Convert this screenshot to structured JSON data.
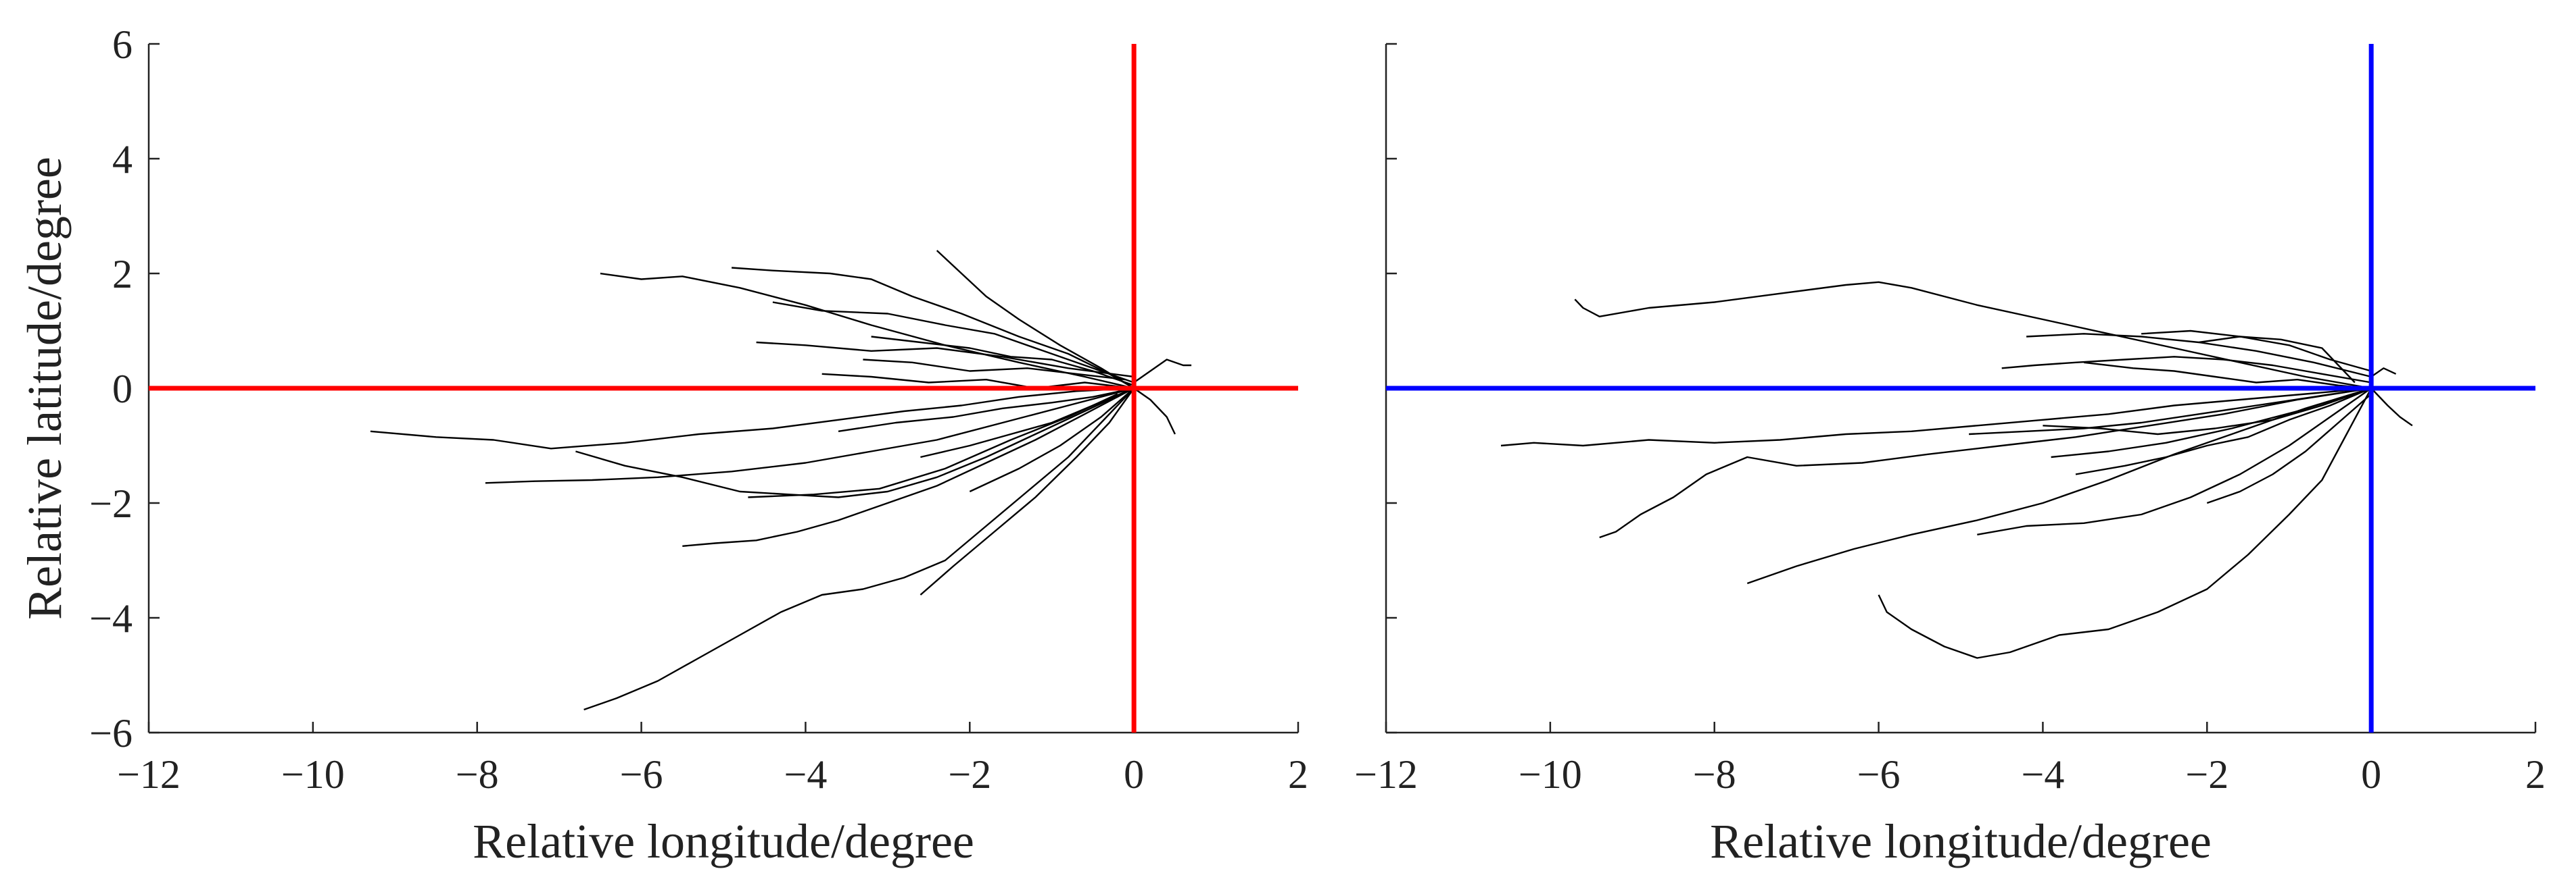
{
  "chart_data": [
    {
      "type": "line",
      "xlabel": "Relative longitude/degree",
      "ylabel": "Relative latitude/degree",
      "xlim": [
        -12,
        2
      ],
      "ylim": [
        -6,
        6
      ],
      "xticks": [
        -12,
        -10,
        -8,
        -6,
        -4,
        -2,
        0,
        2
      ],
      "yticks": [
        -6,
        -4,
        -2,
        0,
        2,
        4,
        6
      ],
      "xtick_labels": [
        "−12",
        "−10",
        "−8",
        "−6",
        "−4",
        "−2",
        "0",
        "2"
      ],
      "ytick_labels": [
        "−6",
        "−4",
        "−2",
        "0",
        "2",
        "4",
        "6"
      ],
      "grid": false,
      "reference_lines": {
        "color": "#ff0000",
        "x": 0,
        "y": 0
      },
      "track_color": "#000000",
      "series": [
        {
          "x": [
            0,
            -0.3,
            -0.8,
            -1.4,
            -2.1,
            -2.7,
            -3.2,
            -3.7,
            -4.4,
            -4.9
          ],
          "y": [
            0,
            0.25,
            0.6,
            0.9,
            1.3,
            1.6,
            1.9,
            2.0,
            2.05,
            2.1
          ]
        },
        {
          "x": [
            0,
            -0.6,
            -1.4,
            -2.3,
            -3.2,
            -4.0,
            -4.8,
            -5.5,
            -6.0,
            -6.5
          ],
          "y": [
            0,
            0.2,
            0.45,
            0.75,
            1.1,
            1.45,
            1.75,
            1.95,
            1.9,
            2.0
          ]
        },
        {
          "x": [
            0,
            -0.4,
            -0.9,
            -1.4,
            -1.8,
            -2.1,
            -2.4
          ],
          "y": [
            0,
            0.35,
            0.75,
            1.2,
            1.6,
            2.0,
            2.4
          ]
        },
        {
          "x": [
            0,
            -0.5,
            -1.1,
            -1.7,
            -2.3,
            -3.0,
            -3.8,
            -4.4
          ],
          "y": [
            0.1,
            0.35,
            0.65,
            0.95,
            1.1,
            1.3,
            1.35,
            1.5
          ]
        },
        {
          "x": [
            0,
            -0.8,
            -1.6,
            -2.4,
            -3.2,
            -4.0,
            -4.6
          ],
          "y": [
            0.2,
            0.35,
            0.55,
            0.7,
            0.65,
            0.75,
            0.8
          ]
        },
        {
          "x": [
            0,
            -0.7,
            -1.4,
            -2.1,
            -2.8,
            -3.6,
            -4.4,
            -5.3,
            -6.2,
            -7.1,
            -7.8,
            -8.5,
            -9.3
          ],
          "y": [
            0,
            -0.05,
            -0.15,
            -0.3,
            -0.4,
            -0.55,
            -0.7,
            -0.8,
            -0.95,
            -1.05,
            -0.9,
            -0.85,
            -0.75
          ]
        },
        {
          "x": [
            0,
            -0.8,
            -1.6,
            -2.4,
            -3.2,
            -4.0,
            -4.9,
            -5.8,
            -6.6,
            -7.3,
            -7.9
          ],
          "y": [
            0,
            -0.3,
            -0.6,
            -0.9,
            -1.1,
            -1.3,
            -1.45,
            -1.55,
            -1.6,
            -1.62,
            -1.65
          ]
        },
        {
          "x": [
            0,
            -0.6,
            -1.2,
            -1.8,
            -2.4,
            -3.0,
            -3.6,
            -4.2,
            -4.8,
            -5.5,
            -6.2,
            -6.8
          ],
          "y": [
            0,
            -0.4,
            -0.8,
            -1.2,
            -1.55,
            -1.8,
            -1.9,
            -1.85,
            -1.8,
            -1.55,
            -1.35,
            -1.1
          ]
        },
        {
          "x": [
            0,
            -0.4,
            -0.8,
            -1.3,
            -1.8,
            -2.3,
            -2.8,
            -3.3,
            -3.8,
            -4.3,
            -4.8,
            -5.3,
            -5.8,
            -6.3,
            -6.7
          ],
          "y": [
            0,
            -0.6,
            -1.2,
            -1.8,
            -2.4,
            -3.0,
            -3.3,
            -3.5,
            -3.6,
            -3.9,
            -4.3,
            -4.7,
            -5.1,
            -5.4,
            -5.6
          ]
        },
        {
          "x": [
            0,
            -0.3,
            -0.7,
            -1.2,
            -1.7,
            -2.2,
            -2.6
          ],
          "y": [
            0,
            -0.6,
            -1.2,
            -1.9,
            -2.5,
            -3.1,
            -3.6
          ]
        },
        {
          "x": [
            0,
            -0.6,
            -1.2,
            -1.8,
            -2.4,
            -3.0,
            -3.6,
            -4.1,
            -4.6,
            -5.1,
            -5.5
          ],
          "y": [
            0,
            -0.45,
            -0.9,
            -1.3,
            -1.7,
            -2.0,
            -2.3,
            -2.5,
            -2.65,
            -2.7,
            -2.75
          ]
        },
        {
          "x": [
            0,
            -0.5,
            -1.0,
            -1.5,
            -2.0,
            -2.6,
            -3.2
          ],
          "y": [
            0.05,
            0.3,
            0.5,
            0.55,
            0.7,
            0.8,
            0.9
          ]
        },
        {
          "x": [
            0,
            -0.5,
            -1.0,
            -1.6,
            -2.2,
            -2.9,
            -3.6
          ],
          "y": [
            0,
            -0.15,
            -0.25,
            -0.35,
            -0.5,
            -0.6,
            -0.75
          ]
        },
        {
          "x": [
            0,
            -0.4,
            -0.9,
            -1.4,
            -2.0
          ],
          "y": [
            0,
            -0.5,
            -1.0,
            -1.4,
            -1.8
          ]
        },
        {
          "x": [
            0,
            -0.6,
            -1.2,
            -1.8,
            -2.5,
            -3.2,
            -3.8
          ],
          "y": [
            0,
            0.1,
            0.0,
            0.15,
            0.1,
            0.2,
            0.25
          ]
        },
        {
          "x": [
            0,
            -0.5,
            -1.0,
            -1.5,
            -2.0,
            -2.6
          ],
          "y": [
            0,
            -0.3,
            -0.6,
            -0.8,
            -1.0,
            -1.2
          ]
        },
        {
          "x": [
            0,
            0.2,
            0.4,
            0.6,
            0.7
          ],
          "y": [
            0.1,
            0.3,
            0.5,
            0.4,
            0.4
          ]
        },
        {
          "x": [
            0,
            0.2,
            0.4,
            0.5
          ],
          "y": [
            0,
            -0.2,
            -0.5,
            -0.8
          ]
        },
        {
          "x": [
            -0.2,
            -0.8,
            -1.5,
            -2.3,
            -3.1,
            -3.9,
            -4.7
          ],
          "y": [
            -0.1,
            -0.5,
            -0.9,
            -1.4,
            -1.75,
            -1.85,
            -1.9
          ]
        },
        {
          "x": [
            -0.1,
            -0.7,
            -1.3,
            -2.0,
            -2.7,
            -3.3
          ],
          "y": [
            0.15,
            0.25,
            0.35,
            0.3,
            0.45,
            0.5
          ]
        }
      ]
    },
    {
      "type": "line",
      "xlabel": "Relative longitude/degree",
      "ylabel": "",
      "xlim": [
        -12,
        2
      ],
      "ylim": [
        -6,
        6
      ],
      "xticks": [
        -12,
        -10,
        -8,
        -6,
        -4,
        -2,
        0,
        2
      ],
      "yticks": [
        -6,
        -4,
        -2,
        0,
        2,
        4,
        6
      ],
      "xtick_labels": [
        "−12",
        "−10",
        "−8",
        "−6",
        "−4",
        "−2",
        "0",
        "2"
      ],
      "ytick_labels": [],
      "grid": false,
      "reference_lines": {
        "color": "#0000ff",
        "x": 0,
        "y": 0
      },
      "track_color": "#000000",
      "series": [
        {
          "x": [
            0,
            -0.8,
            -1.6,
            -2.4,
            -3.2,
            -4.0,
            -4.8,
            -5.6,
            -6.0,
            -6.4,
            -7.2,
            -8.0,
            -8.8,
            -9.4,
            -9.6,
            -9.7
          ],
          "y": [
            0,
            0.2,
            0.45,
            0.7,
            0.95,
            1.2,
            1.45,
            1.75,
            1.85,
            1.8,
            1.65,
            1.5,
            1.4,
            1.25,
            1.4,
            1.55
          ]
        },
        {
          "x": [
            0,
            -0.8,
            -1.6,
            -2.4,
            -3.2,
            -4.0,
            -4.8,
            -5.6,
            -6.4,
            -7.2,
            -8.0,
            -8.8,
            -9.6,
            -10.2,
            -10.6
          ],
          "y": [
            0,
            -0.1,
            -0.2,
            -0.3,
            -0.45,
            -0.55,
            -0.65,
            -0.75,
            -0.8,
            -0.9,
            -0.95,
            -0.9,
            -1.0,
            -0.95,
            -1.0
          ]
        },
        {
          "x": [
            0,
            -0.9,
            -1.8,
            -2.7,
            -3.6,
            -4.5,
            -5.4,
            -6.2,
            -7.0,
            -7.6,
            -8.1,
            -8.5,
            -8.9,
            -9.2,
            -9.4
          ],
          "y": [
            0,
            -0.2,
            -0.45,
            -0.65,
            -0.85,
            -1.0,
            -1.15,
            -1.3,
            -1.35,
            -1.2,
            -1.5,
            -1.9,
            -2.2,
            -2.5,
            -2.6
          ]
        },
        {
          "x": [
            0,
            -0.8,
            -1.6,
            -2.4,
            -3.2,
            -4.0,
            -4.8,
            -5.6,
            -6.3,
            -7.0,
            -7.6
          ],
          "y": [
            0,
            -0.35,
            -0.75,
            -1.15,
            -1.6,
            -2.0,
            -2.3,
            -2.55,
            -2.8,
            -3.1,
            -3.4
          ]
        },
        {
          "x": [
            0,
            -0.3,
            -0.6,
            -1.0,
            -1.5,
            -2.0,
            -2.6,
            -3.2,
            -3.8,
            -4.4,
            -4.8,
            -5.2,
            -5.6,
            -5.9,
            -6.0
          ],
          "y": [
            0,
            -0.8,
            -1.6,
            -2.2,
            -2.9,
            -3.5,
            -3.9,
            -4.2,
            -4.3,
            -4.6,
            -4.7,
            -4.5,
            -4.2,
            -3.9,
            -3.6
          ]
        },
        {
          "x": [
            0,
            -0.5,
            -1.0,
            -1.6,
            -2.2,
            -2.8,
            -3.5,
            -4.2,
            -4.8
          ],
          "y": [
            0,
            -0.5,
            -1.0,
            -1.5,
            -1.9,
            -2.2,
            -2.35,
            -2.4,
            -2.55
          ]
        },
        {
          "x": [
            0,
            -0.7,
            -1.4,
            -2.1,
            -2.8,
            -3.5,
            -4.2
          ],
          "y": [
            0.2,
            0.45,
            0.65,
            0.8,
            0.9,
            0.95,
            0.9
          ]
        },
        {
          "x": [
            0,
            -0.6,
            -1.2,
            -1.8,
            -2.4,
            -3.0,
            -3.6,
            -4.1,
            -4.5
          ],
          "y": [
            0.1,
            0.25,
            0.4,
            0.5,
            0.55,
            0.5,
            0.45,
            0.4,
            0.35
          ]
        },
        {
          "x": [
            0,
            -0.5,
            -1.0,
            -1.6,
            -2.2,
            -2.8
          ],
          "y": [
            0.3,
            0.5,
            0.75,
            0.9,
            1.0,
            0.95
          ]
        },
        {
          "x": [
            0,
            -0.7,
            -1.4,
            -2.1,
            -2.8,
            -3.5,
            -4.2,
            -4.9
          ],
          "y": [
            0,
            -0.15,
            -0.3,
            -0.45,
            -0.6,
            -0.7,
            -0.75,
            -0.8
          ]
        },
        {
          "x": [
            0,
            -0.6,
            -1.2,
            -1.9,
            -2.6,
            -3.3,
            -4.0
          ],
          "y": [
            0,
            -0.3,
            -0.55,
            -0.7,
            -0.8,
            -0.7,
            -0.65
          ]
        },
        {
          "x": [
            0,
            0.2,
            0.35,
            0.5
          ],
          "y": [
            0,
            -0.3,
            -0.5,
            -0.65
          ]
        },
        {
          "x": [
            0,
            0.15,
            0.3
          ],
          "y": [
            0.2,
            0.35,
            0.25
          ]
        },
        {
          "x": [
            0,
            -0.4,
            -0.9,
            -1.4,
            -1.9,
            -2.4,
            -2.9,
            -3.5
          ],
          "y": [
            0,
            0.05,
            0.15,
            0.1,
            0.2,
            0.3,
            0.35,
            0.45
          ]
        },
        {
          "x": [
            0,
            -0.5,
            -1.0,
            -1.5,
            -2.0,
            -2.5,
            -3.0,
            -3.6
          ],
          "y": [
            0,
            -0.3,
            -0.55,
            -0.85,
            -1.0,
            -1.2,
            -1.35,
            -1.5
          ]
        },
        {
          "x": [
            -0.1,
            -0.9,
            -1.7,
            -2.5,
            -3.2,
            -3.9
          ],
          "y": [
            -0.05,
            -0.4,
            -0.7,
            -0.95,
            -1.1,
            -1.2
          ]
        },
        {
          "x": [
            -0.2,
            -0.6,
            -1.1,
            -1.6,
            -2.1
          ],
          "y": [
            0.1,
            0.7,
            0.85,
            0.9,
            0.8
          ]
        },
        {
          "x": [
            0,
            -0.4,
            -0.8,
            -1.2,
            -1.6,
            -2.0
          ],
          "y": [
            -0.1,
            -0.6,
            -1.1,
            -1.5,
            -1.8,
            -2.0
          ]
        }
      ]
    }
  ]
}
